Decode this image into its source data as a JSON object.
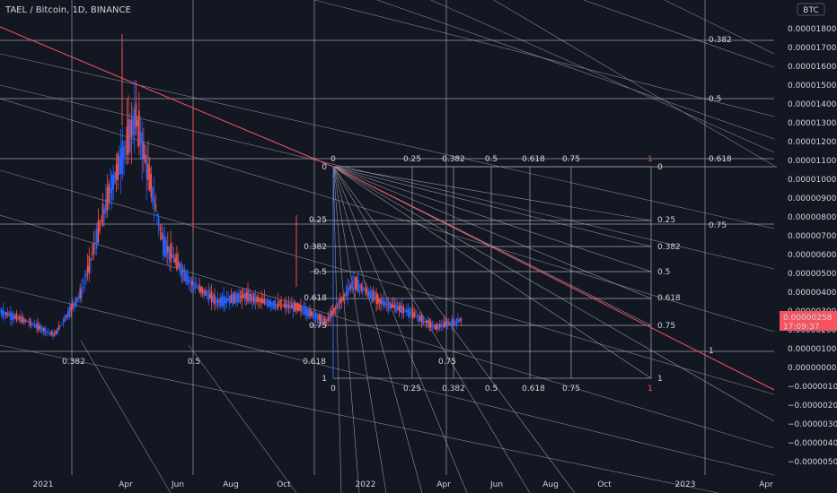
{
  "header": {
    "title": "TAEL / Bitcoin, 1D, BINANCE"
  },
  "price_axis": {
    "currency": "BTC",
    "ticks": [
      "0.00001800",
      "0.00001700",
      "0.00001600",
      "0.00001500",
      "0.00001400",
      "0.00001300",
      "0.00001200",
      "0.00001100",
      "0.00001000",
      "0.00000900",
      "0.00000800",
      "0.00000700",
      "0.00000600",
      "0.00000500",
      "0.00000400",
      "0.00000300",
      "0.00000200",
      "0.00000100",
      "0.00000000",
      "−0.00000100",
      "−0.00000200",
      "−0.00000300",
      "−0.00000400",
      "−0.00000500"
    ],
    "current_price": "0.00000258",
    "countdown": "17:09:37"
  },
  "time_axis": {
    "ticks": [
      "2021",
      "Apr",
      "Jun",
      "Aug",
      "Oct",
      "2022",
      "Apr",
      "Jun",
      "Aug",
      "Oct",
      "2023",
      "Apr"
    ]
  },
  "colors": {
    "background": "#131722",
    "up": "#2962ff",
    "down": "#ef5350",
    "grid_lines": "#b2b5be",
    "trend": "#f7525f"
  },
  "fib_labels": {
    "outer_right": [
      "0.382",
      "0.5",
      "0.618",
      "0.75",
      "1"
    ],
    "bottom_row": [
      "0.382",
      "0.5",
      "0.618",
      "0.75"
    ],
    "box_top": [
      "0",
      "0.25",
      "0.382",
      "0.5",
      "0.618",
      "0.75",
      "1"
    ],
    "box_left": [
      "0",
      "0.25",
      "0.382",
      "0.5",
      "0.618",
      "0.75",
      "1"
    ],
    "box_right": [
      "0",
      "0.25",
      "0.382",
      "0.5",
      "0.618",
      "0.75",
      "1"
    ],
    "box_bottom": [
      "0",
      "0.25",
      "0.382",
      "0.5",
      "0.618",
      "0.75",
      "1"
    ]
  },
  "chart_data": {
    "type": "candlestick",
    "symbol": "TAEL / Bitcoin",
    "interval": "1D",
    "exchange": "BINANCE",
    "y_range": [
      -5e-06,
      1.85e-05
    ],
    "last_price": 2.58e-06,
    "series": [
      {
        "date": "2020-11",
        "close": 3e-06
      },
      {
        "date": "2020-12",
        "close": 2.5e-06
      },
      {
        "date": "2021-01",
        "close": 1.8e-06
      },
      {
        "date": "2021-02",
        "close": 4e-06
      },
      {
        "date": "2021-03",
        "close": 9e-06
      },
      {
        "date": "2021-04",
        "close": 1.3e-05
      },
      {
        "date": "2021-05",
        "close": 6.5e-06
      },
      {
        "date": "2021-06",
        "close": 4.5e-06
      },
      {
        "date": "2021-07",
        "close": 3.5e-06
      },
      {
        "date": "2021-08",
        "close": 3.8e-06
      },
      {
        "date": "2021-09",
        "close": 3.4e-06
      },
      {
        "date": "2021-10",
        "close": 3.2e-06
      },
      {
        "date": "2021-11",
        "close": 2.5e-06
      },
      {
        "date": "2021-12",
        "close": 4.5e-06
      },
      {
        "date": "2022-01",
        "close": 3.5e-06
      },
      {
        "date": "2022-02",
        "close": 3e-06
      },
      {
        "date": "2022-03",
        "close": 2.2e-06
      },
      {
        "date": "2022-04",
        "close": 2.6e-06
      }
    ]
  }
}
